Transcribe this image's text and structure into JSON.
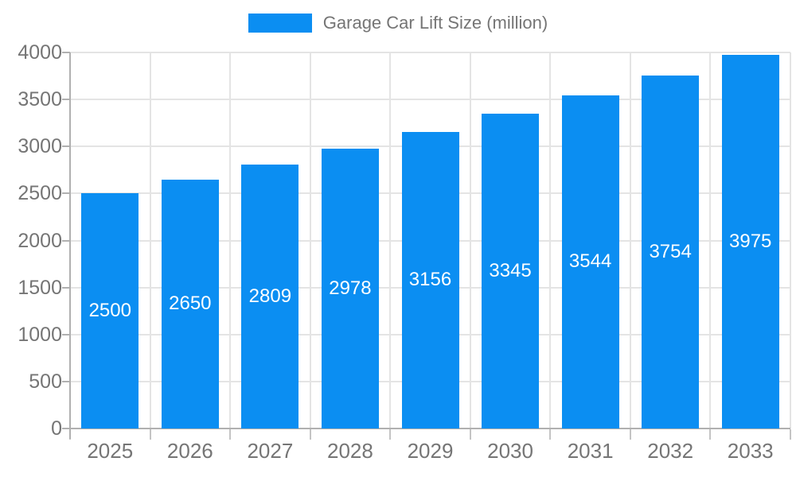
{
  "legend": {
    "label": "Garage Car Lift Size (million)",
    "swatch_color": "#0b8ef2"
  },
  "chart_data": {
    "type": "bar",
    "title": "Garage Car Lift Size (million)",
    "categories": [
      "2025",
      "2026",
      "2027",
      "2028",
      "2029",
      "2030",
      "2031",
      "2032",
      "2033"
    ],
    "values": [
      2500,
      2650,
      2809,
      2978,
      3156,
      3345,
      3544,
      3754,
      3975
    ],
    "xlabel": "",
    "ylabel": "",
    "ylim": [
      0,
      4000
    ],
    "yticks": [
      0,
      500,
      1000,
      1500,
      2000,
      2500,
      3000,
      3500,
      4000
    ],
    "grid": true,
    "legend_position": "top-center",
    "bar_color": "#0b8ef2",
    "value_label_color": "#ffffff",
    "value_labels_inside": true,
    "axis_text_color": "#757575",
    "grid_color": "#e4e4e4",
    "axis_line_color": "#b0b0b0"
  }
}
